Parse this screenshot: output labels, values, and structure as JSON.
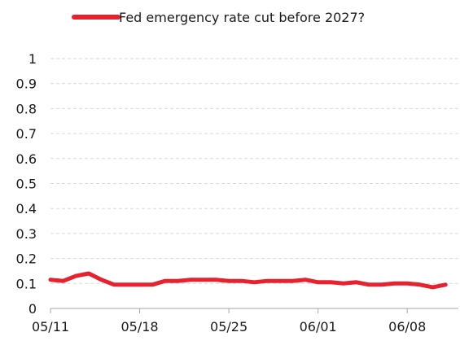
{
  "chart_data": {
    "type": "line",
    "title": "",
    "xlabel": "",
    "ylabel": "",
    "ylim": [
      0,
      1
    ],
    "yticks": [
      "0",
      "0.1",
      "0.2",
      "0.3",
      "0.4",
      "0.5",
      "0.6",
      "0.7",
      "0.8",
      "0.9",
      "1"
    ],
    "xticks": [
      "05/11",
      "05/18",
      "05/25",
      "06/01",
      "06/08"
    ],
    "grid": "horizontal-dashed",
    "legend_position": "top-center",
    "series": [
      {
        "name": "Fed emergency rate cut before 2027?",
        "color": "#e8212e",
        "x": [
          "05/11",
          "05/12",
          "05/13",
          "05/14",
          "05/15",
          "05/16",
          "05/17",
          "05/18",
          "05/19",
          "05/20",
          "05/21",
          "05/22",
          "05/23",
          "05/24",
          "05/25",
          "05/26",
          "05/27",
          "05/28",
          "05/29",
          "05/30",
          "05/31",
          "06/01",
          "06/02",
          "06/03",
          "06/04",
          "06/05",
          "06/06",
          "06/07",
          "06/08",
          "06/09",
          "06/10",
          "06/11"
        ],
        "values": [
          0.115,
          0.11,
          0.13,
          0.14,
          0.115,
          0.095,
          0.095,
          0.095,
          0.095,
          0.11,
          0.11,
          0.115,
          0.115,
          0.115,
          0.11,
          0.11,
          0.105,
          0.11,
          0.11,
          0.11,
          0.115,
          0.105,
          0.105,
          0.1,
          0.105,
          0.095,
          0.095,
          0.1,
          0.1,
          0.095,
          0.085,
          0.095
        ]
      }
    ]
  }
}
